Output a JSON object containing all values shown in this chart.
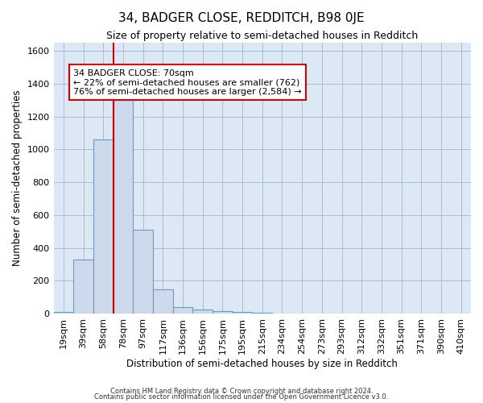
{
  "title": "34, BADGER CLOSE, REDDITCH, B98 0JE",
  "subtitle": "Size of property relative to semi-detached houses in Redditch",
  "xlabel": "Distribution of semi-detached houses by size in Redditch",
  "ylabel": "Number of semi-detached properties",
  "footnote1": "Contains HM Land Registry data © Crown copyright and database right 2024.",
  "footnote2": "Contains public sector information licensed under the Open Government Licence v3.0.",
  "bar_labels": [
    "19sqm",
    "39sqm",
    "58sqm",
    "78sqm",
    "97sqm",
    "117sqm",
    "136sqm",
    "156sqm",
    "175sqm",
    "195sqm",
    "215sqm",
    "234sqm",
    "254sqm",
    "273sqm",
    "293sqm",
    "312sqm",
    "332sqm",
    "351sqm",
    "371sqm",
    "390sqm",
    "410sqm"
  ],
  "bar_values": [
    10,
    330,
    1060,
    1300,
    510,
    150,
    40,
    25,
    15,
    8,
    3,
    0,
    0,
    0,
    0,
    0,
    0,
    0,
    0,
    0,
    0
  ],
  "bar_color": "#ccdaeb",
  "bar_edge_color": "#7099bb",
  "pct_smaller": 22,
  "pct_smaller_count": 762,
  "pct_larger": 76,
  "pct_larger_count": 2584,
  "vline_color": "#cc0000",
  "annotation_box_edgecolor": "#cc0000",
  "ylim": [
    0,
    1650
  ],
  "yticks": [
    0,
    200,
    400,
    600,
    800,
    1000,
    1200,
    1400,
    1600
  ],
  "grid_color": "#aabdd0",
  "bg_color": "#dce8f4",
  "title_fontsize": 11,
  "subtitle_fontsize": 9,
  "axis_label_fontsize": 8.5,
  "tick_fontsize": 8,
  "annot_fontsize": 8
}
